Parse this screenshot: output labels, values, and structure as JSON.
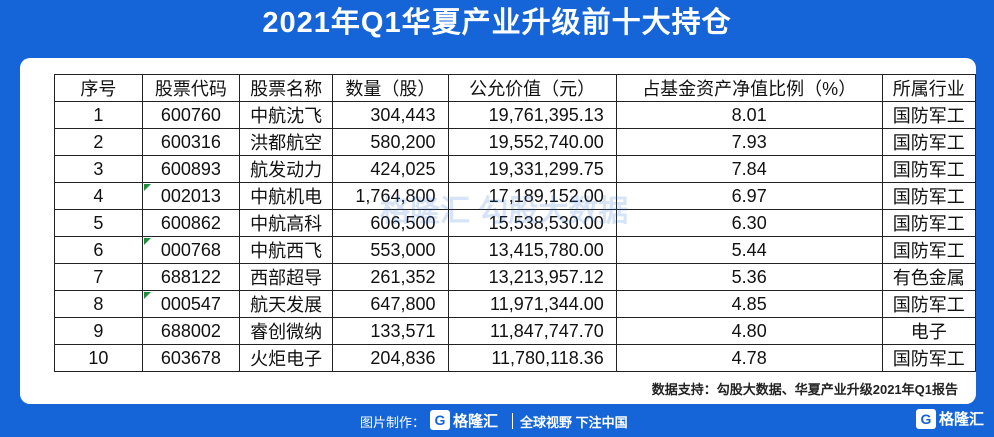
{
  "title": "2021年Q1华夏产业升级前十大持仓",
  "table": {
    "headers": [
      "序号",
      "股票代码",
      "股票名称",
      "数量（股）",
      "公允价值（元）",
      "占基金资产净值比例（%）",
      "所属行业"
    ],
    "rows": [
      [
        "1",
        "600760",
        "中航沈飞",
        "304,443",
        "19,761,395.13",
        "8.01",
        "国防军工"
      ],
      [
        "2",
        "600316",
        "洪都航空",
        "580,200",
        "19,552,740.00",
        "7.93",
        "国防军工"
      ],
      [
        "3",
        "600893",
        "航发动力",
        "424,025",
        "19,331,299.75",
        "7.84",
        "国防军工"
      ],
      [
        "4",
        "002013",
        "中航机电",
        "1,764,800",
        "17,189,152.00",
        "6.97",
        "国防军工"
      ],
      [
        "5",
        "600862",
        "中航高科",
        "606,500",
        "15,538,530.00",
        "6.30",
        "国防军工"
      ],
      [
        "6",
        "000768",
        "中航西飞",
        "553,000",
        "13,415,780.00",
        "5.44",
        "国防军工"
      ],
      [
        "7",
        "688122",
        "西部超导",
        "261,352",
        "13,213,957.12",
        "5.36",
        "有色金属"
      ],
      [
        "8",
        "000547",
        "航天发展",
        "647,800",
        "11,971,344.00",
        "4.85",
        "国防军工"
      ],
      [
        "9",
        "688002",
        "睿创微纳",
        "133,571",
        "11,847,747.70",
        "4.80",
        "电子"
      ],
      [
        "10",
        "603678",
        "火炬电子",
        "204,836",
        "11,780,118.36",
        "4.78",
        "国防军工"
      ]
    ]
  },
  "watermark": "格隆汇  勾股大数据",
  "source": "数据支持：勾股大数据、华夏产业升级2021年Q1报告",
  "footer": {
    "credit": "图片制作：",
    "logo_text": "格隆汇",
    "slogan": "全球视野 下注中国",
    "corner_logo_text": "格隆汇"
  }
}
